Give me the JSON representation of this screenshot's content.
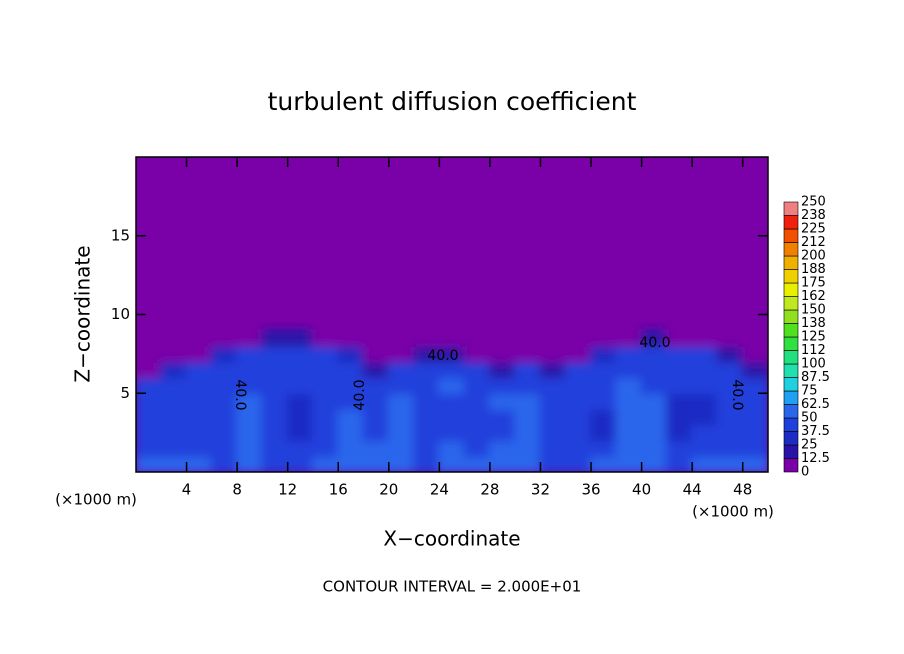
{
  "chart_data": {
    "type": "contour",
    "title": "turbulent diffusion coefficient",
    "x_label": "X−coordinate",
    "y_label": "Z−coordinate",
    "x_unit": "(×1000 m)",
    "y_unit": "(×1000 m)",
    "footer": "CONTOUR INTERVAL = 2.000E+01",
    "contour_labels": [
      "40.0",
      "40.0",
      "40.0",
      "40.0",
      "40.0"
    ],
    "xlim": [
      0,
      50
    ],
    "ylim": [
      0,
      20
    ],
    "xticks": [
      4,
      8,
      12,
      16,
      20,
      24,
      28,
      32,
      36,
      40,
      44,
      48
    ],
    "yticks": [
      5,
      10,
      15
    ],
    "x": [
      1,
      3,
      5,
      7,
      9,
      11,
      13,
      15,
      17,
      19,
      21,
      23,
      25,
      27,
      29,
      31,
      33,
      35,
      37,
      39,
      41,
      43,
      45,
      47,
      49
    ],
    "z": [
      0.5,
      1.5,
      2.5,
      3.5,
      4.5,
      5.5,
      6.5,
      7.5,
      8.5
    ],
    "values": [
      [
        55,
        55,
        50,
        45,
        55,
        45,
        45,
        55,
        50,
        55,
        55,
        45,
        55,
        55,
        55,
        55,
        45,
        45,
        50,
        55,
        55,
        45,
        55,
        55,
        50
      ],
      [
        45,
        45,
        42,
        42,
        58,
        42,
        42,
        45,
        58,
        55,
        60,
        42,
        55,
        42,
        55,
        58,
        45,
        42,
        42,
        58,
        60,
        42,
        42,
        45,
        45
      ],
      [
        45,
        42,
        40,
        42,
        55,
        42,
        35,
        42,
        58,
        45,
        55,
        42,
        48,
        42,
        45,
        55,
        42,
        40,
        35,
        55,
        58,
        35,
        38,
        42,
        45
      ],
      [
        45,
        40,
        38,
        42,
        52,
        40,
        32,
        42,
        55,
        42,
        52,
        45,
        42,
        42,
        45,
        52,
        42,
        40,
        32,
        55,
        55,
        30,
        30,
        40,
        45
      ],
      [
        42,
        40,
        40,
        42,
        50,
        42,
        35,
        42,
        48,
        45,
        50,
        48,
        45,
        48,
        50,
        50,
        45,
        42,
        38,
        55,
        52,
        32,
        32,
        42,
        42
      ],
      [
        40,
        42,
        42,
        44,
        48,
        44,
        42,
        44,
        45,
        48,
        45,
        48,
        50,
        45,
        48,
        45,
        44,
        42,
        44,
        52,
        48,
        40,
        42,
        44,
        40
      ],
      [
        10,
        30,
        42,
        44,
        45,
        44,
        44,
        44,
        42,
        20,
        42,
        45,
        48,
        45,
        20,
        40,
        15,
        42,
        44,
        48,
        45,
        44,
        44,
        42,
        20
      ],
      [
        0,
        0,
        0,
        30,
        40,
        42,
        42,
        42,
        35,
        0,
        0,
        15,
        20,
        10,
        0,
        0,
        0,
        0,
        30,
        42,
        44,
        44,
        40,
        20,
        0
      ],
      [
        0,
        0,
        0,
        0,
        10,
        15,
        15,
        10,
        0,
        0,
        0,
        0,
        0,
        0,
        0,
        0,
        0,
        0,
        0,
        10,
        15,
        10,
        0,
        0,
        0
      ]
    ],
    "levels": [
      0,
      {
        "value": 12.5,
        "label": "12.5"
      },
      25,
      {
        "value": 37.5,
        "label": "37.5"
      },
      50,
      {
        "value": 62.5,
        "label": "62.5"
      },
      75,
      {
        "value": 87.5,
        "label": "87.5"
      },
      100,
      {
        "value": 112.5,
        "label": "112"
      },
      125,
      {
        "value": 137.5,
        "label": "138"
      },
      150,
      {
        "value": 162.5,
        "label": "162"
      },
      175,
      {
        "value": 187.5,
        "label": "188"
      },
      200,
      {
        "value": 212.5,
        "label": "212"
      },
      225,
      {
        "value": 237.5,
        "label": "238"
      },
      250
    ],
    "colors": [
      "#7a00a8",
      "#2a14a8",
      "#1e2cc4",
      "#2040dc",
      "#2a66ec",
      "#20a0f0",
      "#20d0e0",
      "#20e0b0",
      "#20e080",
      "#30e040",
      "#50e020",
      "#90e020",
      "#c0e820",
      "#e8f000",
      "#f0d000",
      "#f0b000",
      "#f08000",
      "#f05000",
      "#f02010",
      "#f08080"
    ]
  }
}
